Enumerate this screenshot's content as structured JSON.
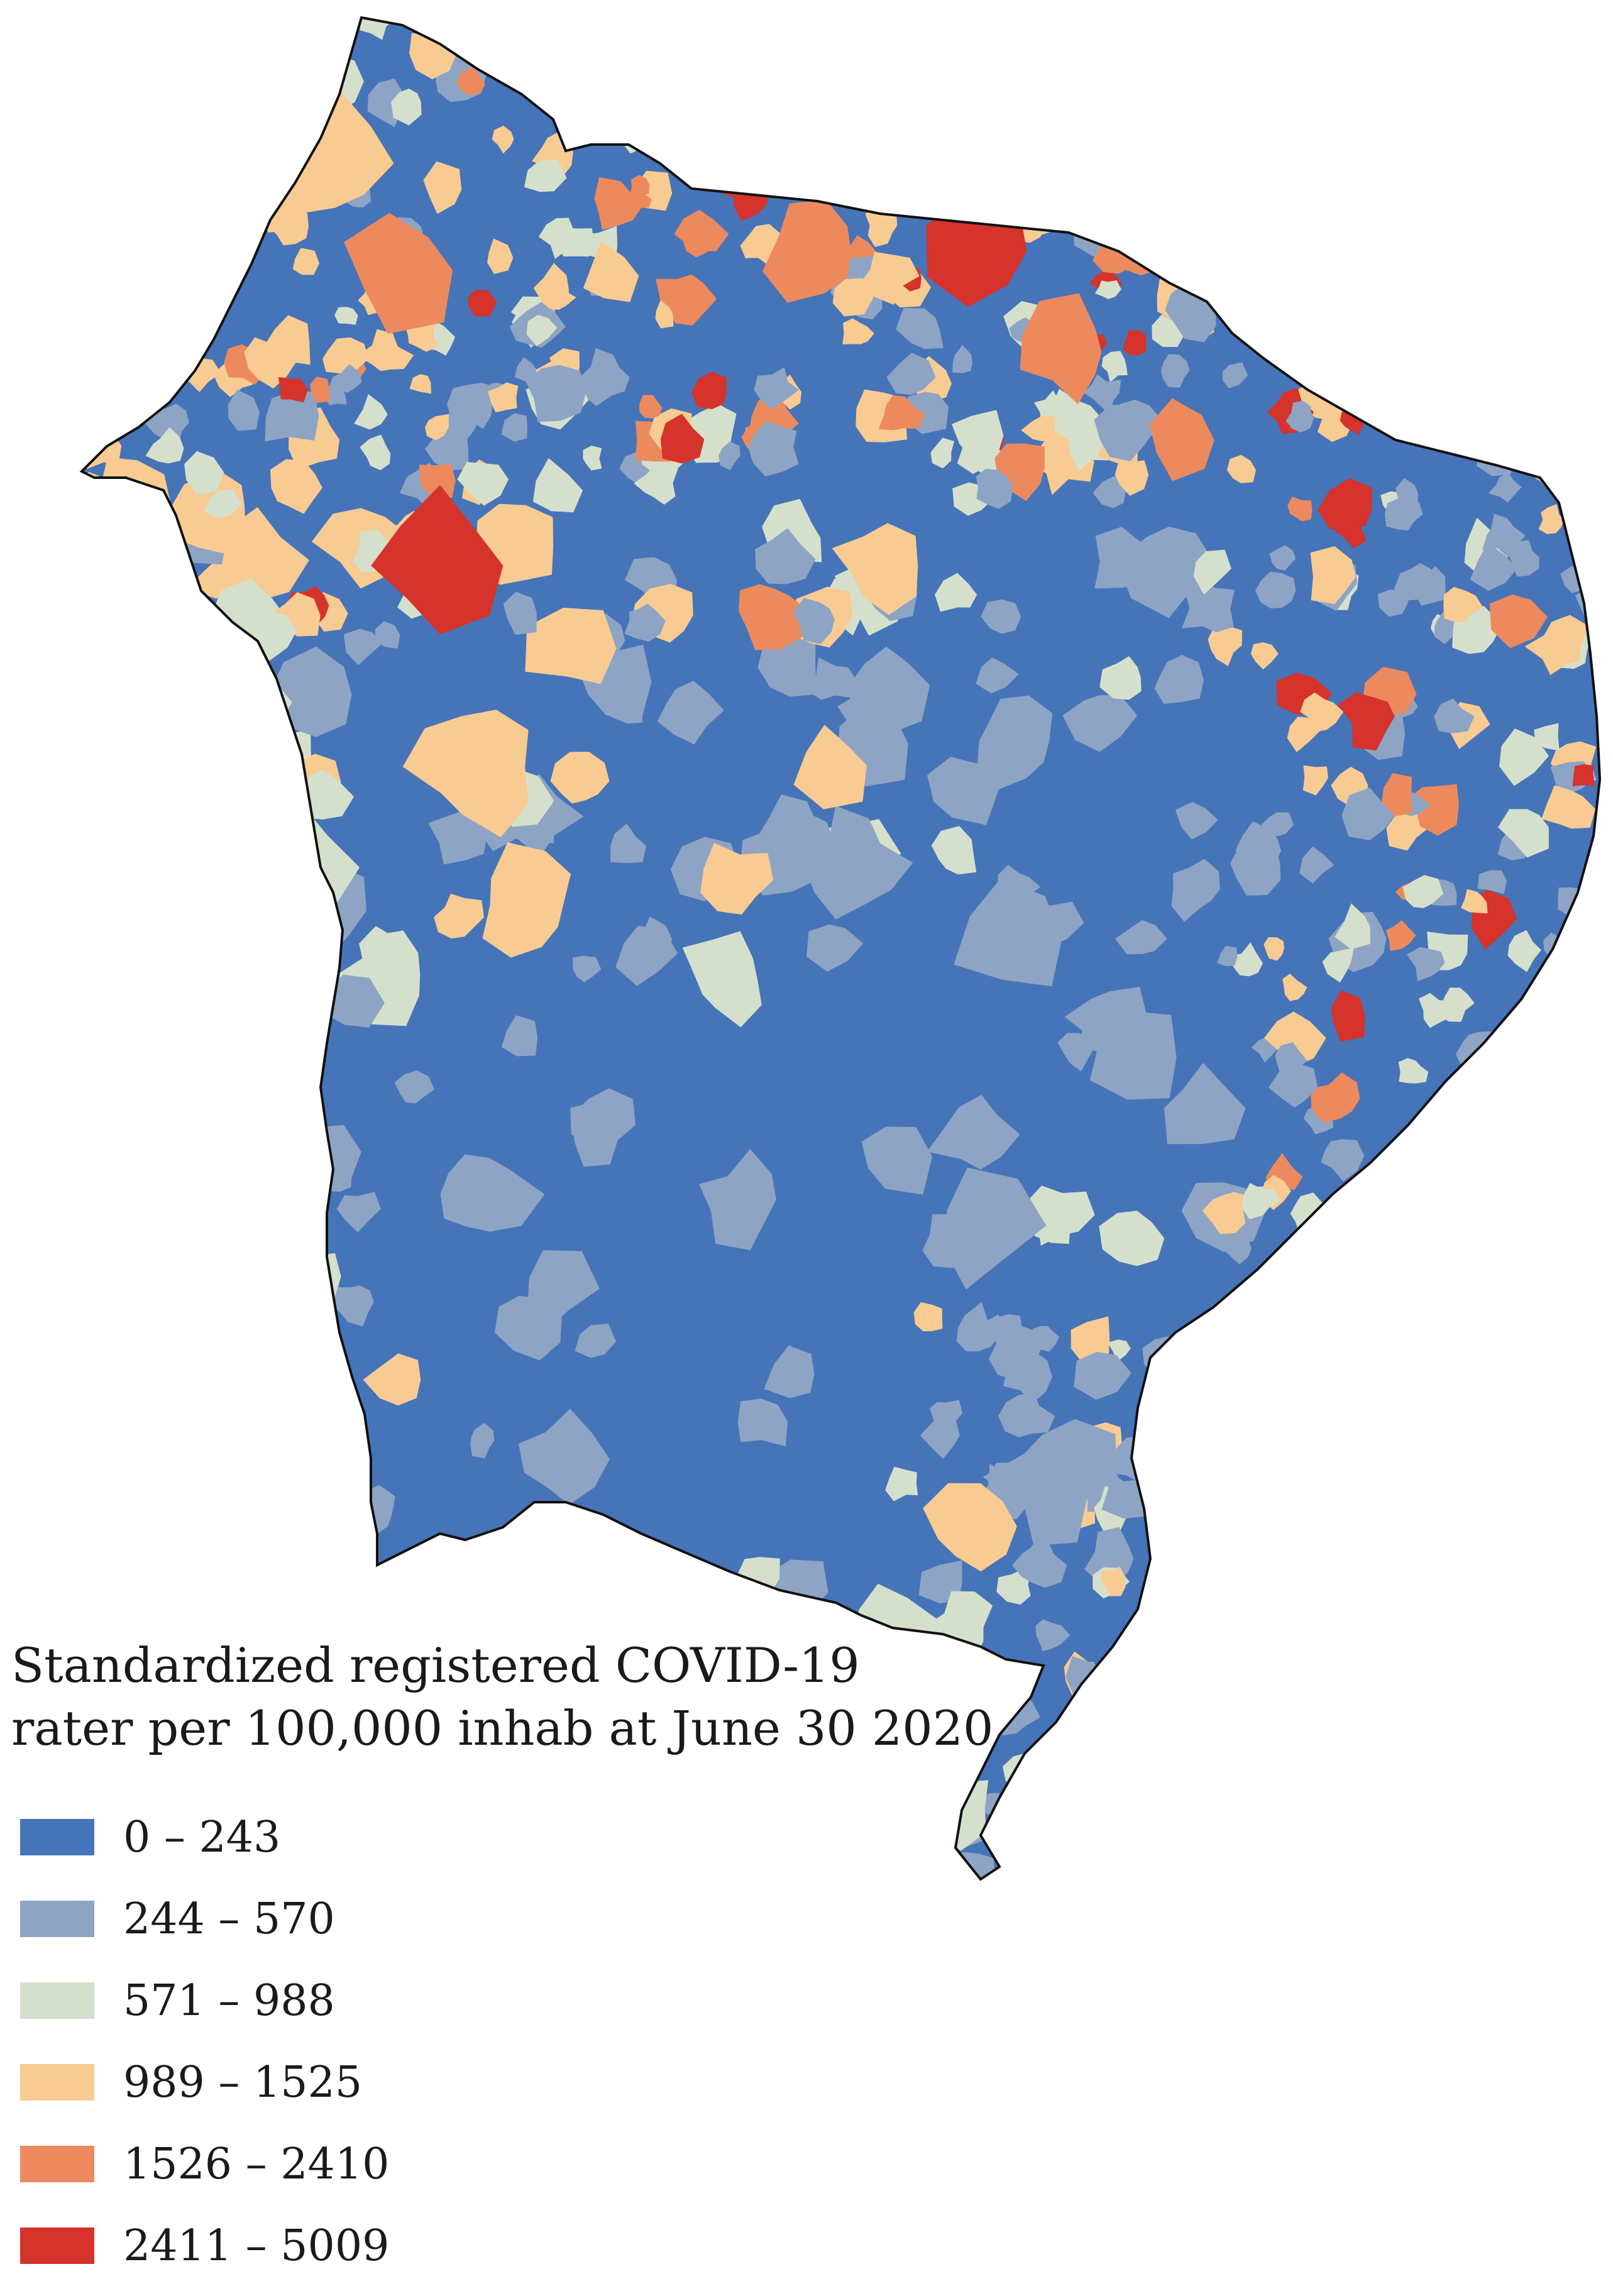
{
  "legend": {
    "title_line1": "Standardized registered COVID-19",
    "title_line2": "rater per 100,000 inhab at June 30 2020",
    "classes": [
      {
        "label": "0 – 243",
        "color": "#4674b8"
      },
      {
        "label": "244 – 570",
        "color": "#8ea4c4"
      },
      {
        "label": "571 – 988",
        "color": "#d5e0cc"
      },
      {
        "label": "989 – 1525",
        "color": "#f8cb92"
      },
      {
        "label": "1526 – 2410",
        "color": "#ec8a5e"
      },
      {
        "label": "2411 – 5009",
        "color": "#d5332b"
      }
    ]
  }
}
